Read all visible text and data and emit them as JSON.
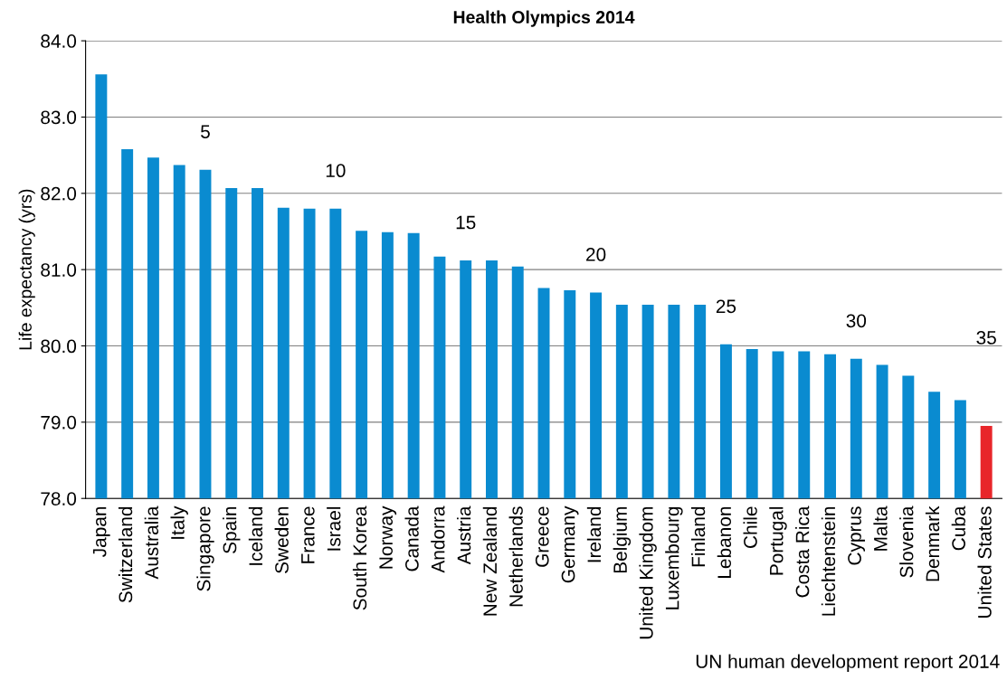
{
  "chart_data": {
    "type": "bar",
    "title": "Health Olympics 2014",
    "ylabel": "Life expectancy (yrs)",
    "categories": [
      "Japan",
      "Switzerland",
      "Australia",
      "Italy",
      "Singapore",
      "Spain",
      "Iceland",
      "Sweden",
      "France",
      "Israel",
      "South Korea",
      "Norway",
      "Canada",
      "Andorra",
      "Austria",
      "New Zealand",
      "Netherlands",
      "Greece",
      "Germany",
      "Ireland",
      "Belgium",
      "United Kingdom",
      "Luxembourg",
      "Finland",
      "Lebanon",
      "Chile",
      "Portugal",
      "Costa Rica",
      "Liechtenstein",
      "Cyprus",
      "Malta",
      "Slovenia",
      "Denmark",
      "Cuba",
      "United States"
    ],
    "values": [
      83.56,
      82.58,
      82.47,
      82.37,
      82.31,
      82.07,
      82.07,
      81.81,
      81.8,
      81.8,
      81.51,
      81.49,
      81.48,
      81.17,
      81.12,
      81.12,
      81.04,
      80.76,
      80.73,
      80.7,
      80.54,
      80.54,
      80.54,
      80.54,
      80.02,
      79.96,
      79.93,
      79.93,
      79.89,
      79.83,
      79.75,
      79.61,
      79.4,
      79.29,
      78.95
    ],
    "colors": [
      "#0a8bd0",
      "#0a8bd0",
      "#0a8bd0",
      "#0a8bd0",
      "#0a8bd0",
      "#0a8bd0",
      "#0a8bd0",
      "#0a8bd0",
      "#0a8bd0",
      "#0a8bd0",
      "#0a8bd0",
      "#0a8bd0",
      "#0a8bd0",
      "#0a8bd0",
      "#0a8bd0",
      "#0a8bd0",
      "#0a8bd0",
      "#0a8bd0",
      "#0a8bd0",
      "#0a8bd0",
      "#0a8bd0",
      "#0a8bd0",
      "#0a8bd0",
      "#0a8bd0",
      "#0a8bd0",
      "#0a8bd0",
      "#0a8bd0",
      "#0a8bd0",
      "#0a8bd0",
      "#0a8bd0",
      "#0a8bd0",
      "#0a8bd0",
      "#0a8bd0",
      "#0a8bd0",
      "#e8262a"
    ],
    "ylim": [
      78,
      84
    ],
    "yticks": [
      {
        "value": 78,
        "label": "78.0"
      },
      {
        "value": 79,
        "label": "79.0"
      },
      {
        "value": 80,
        "label": "80.0"
      },
      {
        "value": 81,
        "label": "81.0"
      },
      {
        "value": 82,
        "label": "82.0"
      },
      {
        "value": 83,
        "label": "83.0"
      },
      {
        "value": 84,
        "label": "84.0"
      }
    ],
    "grid": "y",
    "annotations": [
      "5",
      "10",
      "15",
      "20",
      "25",
      "30",
      "35",
      "UN human development report 2014"
    ]
  }
}
